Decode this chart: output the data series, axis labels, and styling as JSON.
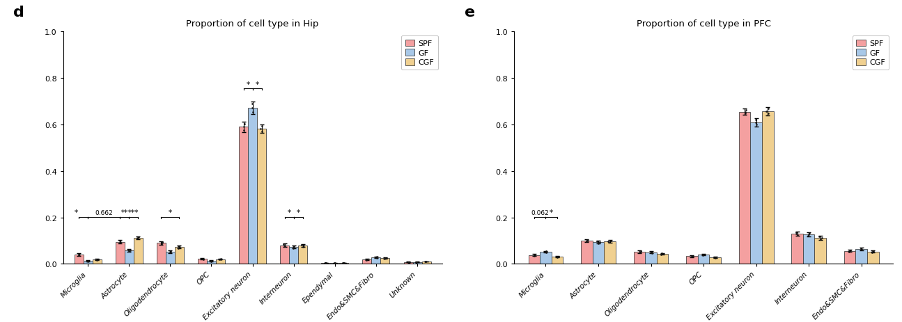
{
  "panel_d": {
    "title": "Proportion of cell type in Hip",
    "categories": [
      "Microglia",
      "Astrocyte",
      "Oligodendrocyte",
      "OPC",
      "Excitatory neuron",
      "Interneuron",
      "Ependymal",
      "Endo&SMC&Fibro",
      "Unknown"
    ],
    "spf_values": [
      0.04,
      0.095,
      0.09,
      0.022,
      0.59,
      0.08,
      0.004,
      0.018,
      0.008
    ],
    "gf_values": [
      0.012,
      0.058,
      0.052,
      0.013,
      0.672,
      0.072,
      0.003,
      0.028,
      0.008
    ],
    "cgf_values": [
      0.018,
      0.112,
      0.072,
      0.02,
      0.582,
      0.078,
      0.004,
      0.024,
      0.01
    ],
    "spf_err": [
      0.006,
      0.008,
      0.007,
      0.003,
      0.022,
      0.007,
      0.001,
      0.003,
      0.001
    ],
    "gf_err": [
      0.003,
      0.006,
      0.006,
      0.002,
      0.028,
      0.006,
      0.001,
      0.004,
      0.001
    ],
    "cgf_err": [
      0.003,
      0.007,
      0.006,
      0.002,
      0.018,
      0.006,
      0.001,
      0.003,
      0.001
    ],
    "ylim": [
      0.0,
      1.0
    ],
    "yticks": [
      0.0,
      0.2,
      0.4,
      0.6,
      0.8,
      1.0
    ]
  },
  "panel_e": {
    "title": "Proportion of cell type in PFC",
    "categories": [
      "Microglia",
      "Astrocyte",
      "Oligodendrocyte",
      "OPC",
      "Excitatory neuron",
      "Interneuron",
      "Endo&SMC&Fibro"
    ],
    "spf_values": [
      0.038,
      0.1,
      0.052,
      0.033,
      0.655,
      0.13,
      0.056
    ],
    "gf_values": [
      0.052,
      0.093,
      0.05,
      0.04,
      0.61,
      0.128,
      0.064
    ],
    "cgf_values": [
      0.03,
      0.097,
      0.043,
      0.028,
      0.658,
      0.112,
      0.053
    ],
    "spf_err": [
      0.004,
      0.006,
      0.005,
      0.004,
      0.014,
      0.009,
      0.005
    ],
    "gf_err": [
      0.004,
      0.006,
      0.005,
      0.003,
      0.018,
      0.009,
      0.006
    ],
    "cgf_err": [
      0.003,
      0.006,
      0.004,
      0.003,
      0.018,
      0.009,
      0.005
    ],
    "ylim": [
      0.0,
      1.0
    ],
    "yticks": [
      0.0,
      0.2,
      0.4,
      0.6,
      0.8,
      1.0
    ]
  },
  "spf_color": "#F4A0A0",
  "gf_color": "#A8C8E8",
  "cgf_color": "#F0D090",
  "edge_color": "#444444",
  "bar_width": 0.22,
  "panel_labels": [
    "d",
    "e"
  ]
}
